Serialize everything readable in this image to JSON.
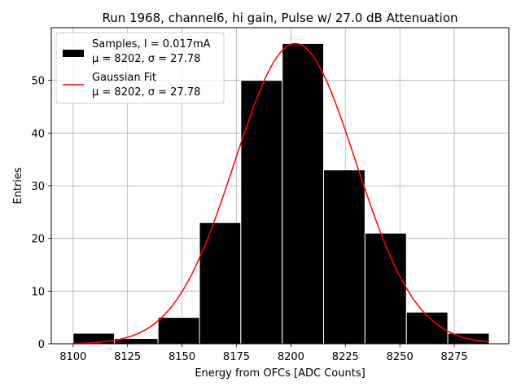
{
  "chart_data": {
    "type": "bar",
    "title": "Run 1968, channel6, hi gain, Pulse w/ 27.0 dB Attenuation",
    "xlabel": "Energy from OFCs [ADC Counts]",
    "ylabel": "Entries",
    "xlim": [
      8090,
      8300
    ],
    "ylim": [
      0,
      60
    ],
    "xticks": [
      8100,
      8125,
      8150,
      8175,
      8200,
      8225,
      8250,
      8275
    ],
    "yticks": [
      0,
      10,
      20,
      30,
      40,
      50
    ],
    "grid": true,
    "legend_position": "top-left",
    "histogram": {
      "name": "Samples, I = 0.017mA",
      "stats": "μ = 8202, σ = 27.78",
      "color": "#000000",
      "bin_edges": [
        8100,
        8119,
        8139,
        8158,
        8177,
        8196,
        8215,
        8234,
        8253,
        8272,
        8291
      ],
      "counts": [
        2,
        1,
        5,
        23,
        50,
        57,
        33,
        21,
        6,
        2
      ]
    },
    "fit": {
      "name": "Gaussian Fit",
      "stats": "μ = 8202, σ = 27.78",
      "color": "#ff0000",
      "mu": 8202,
      "sigma": 27.78,
      "amplitude": 57,
      "x_range": [
        8100,
        8291
      ]
    }
  }
}
